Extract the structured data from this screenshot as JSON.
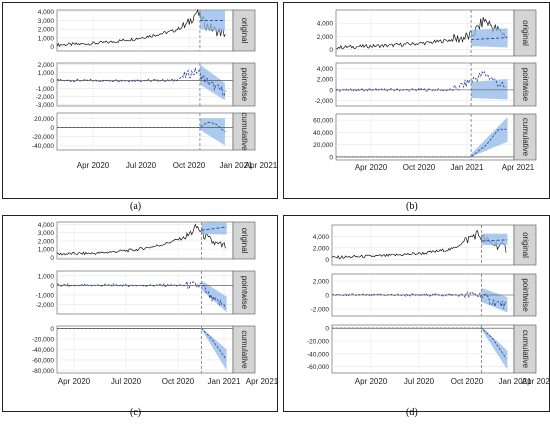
{
  "figure": {
    "panels": [
      {
        "caption": "(a)",
        "x_ticks": [
          "Apr 2020",
          "Jul 2020",
          "Oct 2020",
          "Jan 2021",
          "Apr 2021"
        ],
        "strips": [
          "original",
          "pointwise",
          "cumulative"
        ]
      },
      {
        "caption": "(b)",
        "x_ticks": [
          "Apr 2020",
          "Oct 2020",
          "Jan 2021",
          "Apr 2021"
        ],
        "strips": [
          "original",
          "pointwise",
          "cumulative"
        ]
      },
      {
        "caption": "(c)",
        "x_ticks": [
          "Apr 2020",
          "Jul 2020",
          "Oct 2020",
          "Jan 2021",
          "Apr 2021"
        ],
        "strips": [
          "original",
          "pointwise",
          "cumulative"
        ]
      },
      {
        "caption": "(d)",
        "x_ticks": [
          "Apr 2020",
          "Jul 2020",
          "Oct 2020",
          "Jan 2021",
          "Apr 2021"
        ],
        "strips": [
          "original",
          "pointwise",
          "cumulative"
        ]
      }
    ]
  },
  "chart_data": [
    {
      "type": "line",
      "panel": "a",
      "x_ticks": [
        "Apr 2020",
        "Jul 2020",
        "Oct 2020",
        "Jan 2021",
        "Apr 2021"
      ],
      "x_range": [
        "2020-03-01",
        "2021-04-20"
      ],
      "intervention_date": "2021-02-01",
      "facets": [
        {
          "name": "original",
          "ylim": [
            -500,
            4200
          ],
          "y_ticks": [
            "0",
            "1,000",
            "2,000",
            "3,000",
            "4,000"
          ],
          "series": [
            {
              "name": "observed",
              "points": [
                [
                  "2020-03-01",
                  200
                ],
                [
                  "2020-05-01",
                  300
                ],
                [
                  "2020-07-01",
                  500
                ],
                [
                  "2020-09-01",
                  900
                ],
                [
                  "2020-10-15",
                  1300
                ],
                [
                  "2020-12-01",
                  1800
                ],
                [
                  "2021-01-01",
                  2500
                ],
                [
                  "2021-01-25",
                  4000
                ],
                [
                  "2021-02-15",
                  2500
                ],
                [
                  "2021-03-10",
                  1800
                ],
                [
                  "2021-04-01",
                  1500
                ]
              ]
            },
            {
              "name": "counterfactual",
              "points": [
                [
                  "2021-02-01",
                  3000
                ],
                [
                  "2021-04-01",
                  3000
                ]
              ],
              "band": [
                [
                  "2021-02-01",
                  2000,
                  4200
                ],
                [
                  "2021-04-01",
                  1800,
                  4200
                ]
              ]
            }
          ]
        },
        {
          "name": "pointwise",
          "ylim": [
            -3200,
            2200
          ],
          "y_ticks": [
            "2,000",
            "1,000",
            "0",
            "-1,000",
            "-2,000",
            "-3,000"
          ],
          "series": [
            {
              "name": "effect",
              "points": [
                [
                  "2020-03-01",
                  0
                ],
                [
                  "2020-12-01",
                  0
                ],
                [
                  "2021-01-25",
                  1200
                ],
                [
                  "2021-02-15",
                  0
                ],
                [
                  "2021-03-15",
                  -1000
                ],
                [
                  "2021-04-01",
                  -1500
                ]
              ],
              "band": [
                [
                  "2021-02-01",
                  -500,
                  2000
                ],
                [
                  "2021-04-01",
                  -2500,
                  -300
                ]
              ]
            }
          ]
        },
        {
          "name": "cumulative",
          "ylim": [
            -50000,
            32000
          ],
          "y_ticks": [
            "20,000",
            "0",
            "-20,000",
            "-40,000"
          ],
          "series": [
            {
              "name": "cumulative effect",
              "points": [
                [
                  "2020-03-01",
                  0
                ],
                [
                  "2021-02-01",
                  0
                ],
                [
                  "2021-02-20",
                  12000
                ],
                [
                  "2021-03-10",
                  8000
                ],
                [
                  "2021-04-01",
                  -10000
                ]
              ],
              "band": [
                [
                  "2021-02-01",
                  -5000,
                  20000
                ],
                [
                  "2021-04-01",
                  -40000,
                  20000
                ]
              ]
            }
          ]
        }
      ]
    },
    {
      "type": "line",
      "panel": "b",
      "x_ticks": [
        "Apr 2020",
        "Oct 2020",
        "Jan 2021",
        "Apr 2021"
      ],
      "x_range": [
        "2020-03-01",
        "2021-04-20"
      ],
      "intervention_date": "2021-01-10",
      "facets": [
        {
          "name": "original",
          "ylim": [
            -1000,
            6000
          ],
          "y_ticks": [
            "4,000",
            "2,000",
            "0"
          ],
          "series": [
            {
              "name": "observed",
              "points": [
                [
                  "2020-03-01",
                  300
                ],
                [
                  "2020-07-01",
                  600
                ],
                [
                  "2020-10-01",
                  1000
                ],
                [
                  "2020-12-01",
                  1500
                ],
                [
                  "2021-01-10",
                  2000
                ],
                [
                  "2021-02-10",
                  4500
                ],
                [
                  "2021-03-10",
                  3000
                ],
                [
                  "2021-04-05",
                  2000
                ]
              ]
            },
            {
              "name": "counterfactual",
              "points": [
                [
                  "2021-01-10",
                  1500
                ],
                [
                  "2021-04-05",
                  1800
                ]
              ],
              "band": [
                [
                  "2021-01-10",
                  500,
                  3000
                ],
                [
                  "2021-04-05",
                  300,
                  3200
                ]
              ]
            }
          ]
        },
        {
          "name": "pointwise",
          "ylim": [
            -3000,
            5000
          ],
          "y_ticks": [
            "4,000",
            "2,000",
            "0",
            "-2,000"
          ],
          "series": [
            {
              "name": "effect",
              "points": [
                [
                  "2020-03-01",
                  0
                ],
                [
                  "2020-12-01",
                  0
                ],
                [
                  "2021-02-10",
                  3000
                ],
                [
                  "2021-03-10",
                  1500
                ],
                [
                  "2021-04-05",
                  0
                ]
              ],
              "band": [
                [
                  "2021-01-10",
                  -1500,
                  1500
                ],
                [
                  "2021-04-05",
                  -1800,
                  2000
                ]
              ]
            }
          ]
        },
        {
          "name": "cumulative",
          "ylim": [
            -5000,
            70000
          ],
          "y_ticks": [
            "60,000",
            "40,000",
            "20,000",
            "0"
          ],
          "series": [
            {
              "name": "cumulative effect",
              "points": [
                [
                  "2020-03-01",
                  0
                ],
                [
                  "2021-01-10",
                  0
                ],
                [
                  "2021-02-15",
                  20000
                ],
                [
                  "2021-03-15",
                  45000
                ],
                [
                  "2021-04-05",
                  45000
                ]
              ],
              "band": [
                [
                  "2021-01-10",
                  0,
                  5000
                ],
                [
                  "2021-04-05",
                  25000,
                  65000
                ]
              ]
            }
          ]
        }
      ]
    },
    {
      "type": "line",
      "panel": "c",
      "x_ticks": [
        "Apr 2020",
        "Jul 2020",
        "Oct 2020",
        "Jan 2021",
        "Apr 2021"
      ],
      "x_range": [
        "2020-03-01",
        "2021-04-20"
      ],
      "intervention_date": "2021-02-05",
      "facets": [
        {
          "name": "original",
          "ylim": [
            -200,
            4300
          ],
          "y_ticks": [
            "4,000",
            "3,000",
            "2,000",
            "1,000",
            "0"
          ],
          "series": [
            {
              "name": "observed",
              "points": [
                [
                  "2020-03-01",
                  400
                ],
                [
                  "2020-06-01",
                  500
                ],
                [
                  "2020-09-01",
                  900
                ],
                [
                  "2020-11-01",
                  1500
                ],
                [
                  "2021-01-01",
                  2500
                ],
                [
                  "2021-01-25",
                  3700
                ],
                [
                  "2021-02-20",
                  2200
                ],
                [
                  "2021-03-15",
                  1500
                ],
                [
                  "2021-04-05",
                  1300
                ]
              ]
            },
            {
              "name": "counterfactual",
              "points": [
                [
                  "2021-02-05",
                  3300
                ],
                [
                  "2021-04-05",
                  3700
                ]
              ],
              "band": [
                [
                  "2021-02-05",
                  2800,
                  4200
                ],
                [
                  "2021-04-05",
                  2800,
                  4300
                ]
              ]
            }
          ]
        },
        {
          "name": "pointwise",
          "ylim": [
            -3000,
            1500
          ],
          "y_ticks": [
            "1,000",
            "0",
            "-1,000",
            "-2,000"
          ],
          "series": [
            {
              "name": "effect",
              "points": [
                [
                  "2020-03-01",
                  0
                ],
                [
                  "2021-02-05",
                  0
                ],
                [
                  "2021-03-01",
                  -1500
                ],
                [
                  "2021-04-05",
                  -2200
                ]
              ],
              "band": [
                [
                  "2021-02-05",
                  -500,
                  500
                ],
                [
                  "2021-04-05",
                  -2800,
                  -1200
                ]
              ]
            }
          ]
        },
        {
          "name": "cumulative",
          "ylim": [
            -85000,
            5000
          ],
          "y_ticks": [
            "0",
            "-20,000",
            "-40,000",
            "-60,000",
            "-80,000"
          ],
          "series": [
            {
              "name": "cumulative effect",
              "points": [
                [
                  "2020-03-01",
                  0
                ],
                [
                  "2021-02-05",
                  0
                ],
                [
                  "2021-03-01",
                  -20000
                ],
                [
                  "2021-04-05",
                  -60000
                ]
              ],
              "band": [
                [
                  "2021-02-05",
                  -2000,
                  2000
                ],
                [
                  "2021-04-05",
                  -80000,
                  -40000
                ]
              ]
            }
          ]
        }
      ]
    },
    {
      "type": "line",
      "panel": "d",
      "x_ticks": [
        "Apr 2020",
        "Jul 2020",
        "Oct 2020",
        "Jan 2021",
        "Apr 2021"
      ],
      "x_range": [
        "2020-03-01",
        "2021-04-20"
      ],
      "intervention_date": "2021-02-05",
      "facets": [
        {
          "name": "original",
          "ylim": [
            -1000,
            6000
          ],
          "y_ticks": [
            "4,000",
            "2,000",
            "0"
          ],
          "series": [
            {
              "name": "observed",
              "points": [
                [
                  "2020-03-01",
                  300
                ],
                [
                  "2020-07-01",
                  600
                ],
                [
                  "2020-10-01",
                  1100
                ],
                [
                  "2020-12-01",
                  1800
                ],
                [
                  "2021-01-25",
                  4500
                ],
                [
                  "2021-02-20",
                  3000
                ],
                [
                  "2021-03-15",
                  2500
                ],
                [
                  "2021-04-05",
                  1800
                ]
              ]
            },
            {
              "name": "counterfactual",
              "points": [
                [
                  "2021-02-05",
                  3200
                ],
                [
                  "2021-04-05",
                  3400
                ]
              ],
              "band": [
                [
                  "2021-02-05",
                  2500,
                  4500
                ],
                [
                  "2021-04-05",
                  2500,
                  4500
                ]
              ]
            }
          ]
        },
        {
          "name": "pointwise",
          "ylim": [
            -3000,
            3000
          ],
          "y_ticks": [
            "2,000",
            "0",
            "-2,000"
          ],
          "series": [
            {
              "name": "effect",
              "points": [
                [
                  "2020-03-01",
                  0
                ],
                [
                  "2021-02-05",
                  0
                ],
                [
                  "2021-03-01",
                  -1000
                ],
                [
                  "2021-04-05",
                  -1500
                ]
              ],
              "band": [
                [
                  "2021-02-05",
                  -1000,
                  1000
                ],
                [
                  "2021-04-05",
                  -2500,
                  -300
                ]
              ]
            }
          ]
        },
        {
          "name": "cumulative",
          "ylim": [
            -70000,
            5000
          ],
          "y_ticks": [
            "0",
            "-20,000",
            "-40,000",
            "-60,000"
          ],
          "series": [
            {
              "name": "cumulative effect",
              "points": [
                [
                  "2020-03-01",
                  0
                ],
                [
                  "2021-02-05",
                  0
                ],
                [
                  "2021-03-01",
                  -15000
                ],
                [
                  "2021-04-05",
                  -50000
                ]
              ],
              "band": [
                [
                  "2021-02-05",
                  -2000,
                  2000
                ],
                [
                  "2021-04-05",
                  -65000,
                  -35000
                ]
              ]
            }
          ]
        }
      ]
    }
  ]
}
